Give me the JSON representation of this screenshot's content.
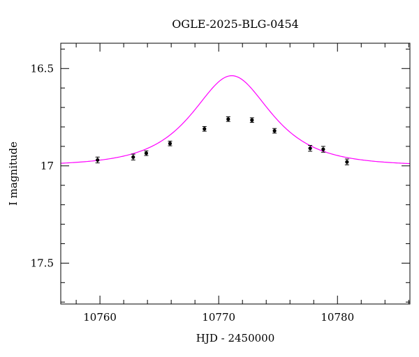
{
  "chart_data": {
    "type": "scatter",
    "title": "OGLE-2025-BLG-0454",
    "xlabel": "HJD - 2450000",
    "ylabel": "I magnitude",
    "xlim": [
      10756.7,
      10786.1
    ],
    "ylim": [
      17.71,
      16.37
    ],
    "y_inverted": true,
    "x_major_ticks": [
      10760,
      10770,
      10780
    ],
    "x_tick_labels": [
      "10760",
      "10770",
      "10780"
    ],
    "x_minor_step": 2,
    "y_major_ticks": [
      16.5,
      17,
      17.5
    ],
    "y_tick_labels": [
      "16.5",
      "17",
      "17.5"
    ],
    "y_minor_step": 0.1,
    "grid": false,
    "colors": {
      "points": "#000000",
      "model": "#ff00ff",
      "frame": "#000000"
    },
    "series": [
      {
        "type": "scatter_errorbar",
        "x": [
          10759.8,
          10762.8,
          10763.9,
          10765.9,
          10768.8,
          10770.8,
          10772.8,
          10774.7,
          10777.7,
          10778.8,
          10780.8
        ],
        "y": [
          16.97,
          16.955,
          16.935,
          16.885,
          16.81,
          16.76,
          16.765,
          16.82,
          16.91,
          16.915,
          16.98
        ],
        "err": [
          0.015,
          0.015,
          0.012,
          0.012,
          0.012,
          0.012,
          0.012,
          0.012,
          0.015,
          0.015,
          0.015
        ]
      },
      {
        "type": "model_line",
        "t0": 10771.1,
        "u0": 0.8,
        "tE": 4.5,
        "I_base": 17.0
      }
    ]
  }
}
